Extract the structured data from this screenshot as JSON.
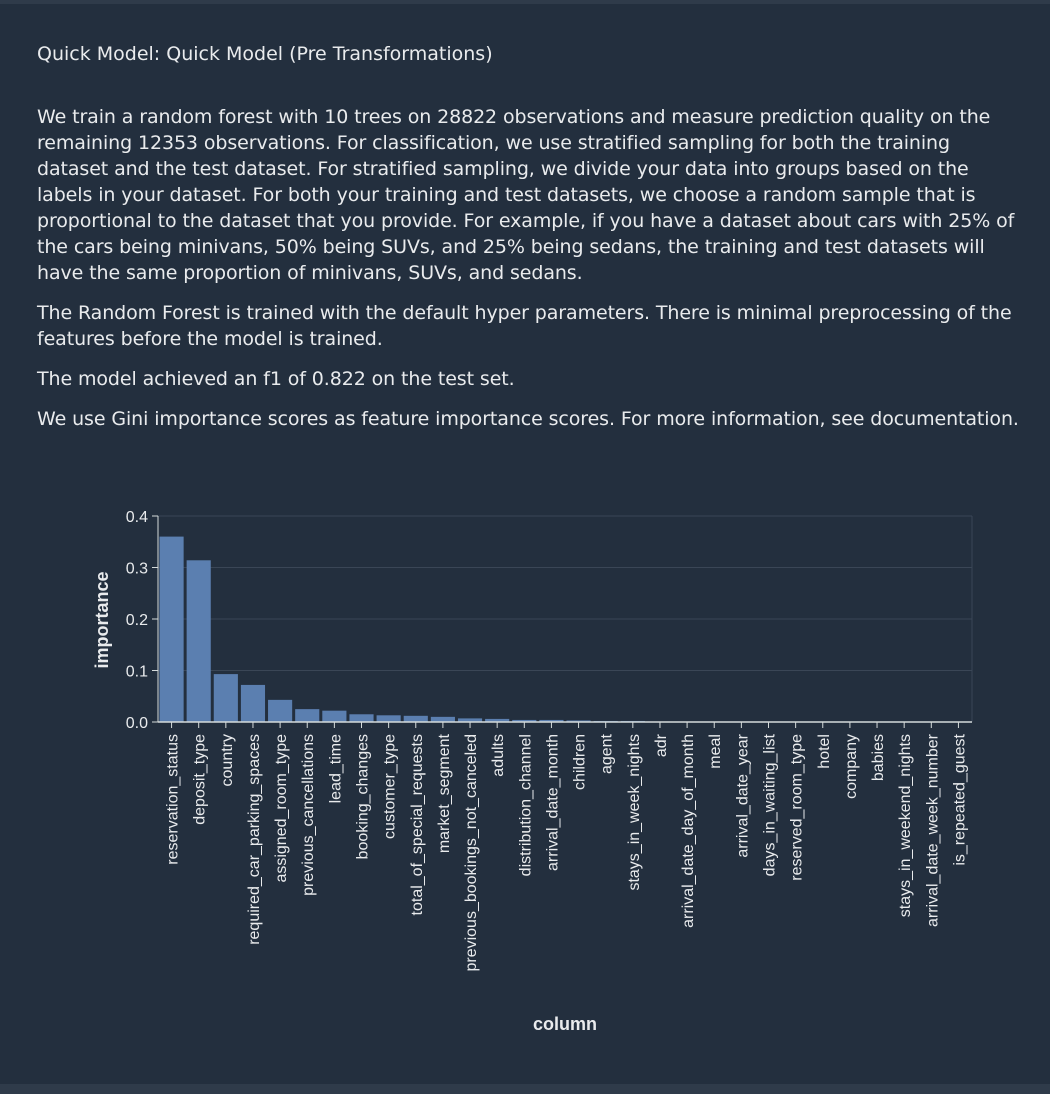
{
  "panel": {
    "title": "Quick Model: Quick Model (Pre Transformations)",
    "paragraphs": [
      "We train a random forest with 10 trees on 28822 observations and measure prediction quality on the remaining 12353 observations. For classification, we use stratified sampling for both the training dataset and the test dataset. For stratified sampling, we divide your data into groups based on the labels in your dataset. For both your training and test datasets, we choose a random sample that is proportional to the dataset that you provide. For example, if you have a dataset about cars with 25% of the cars being minivans, 50% being SUVs, and 25% being sedans, the training and test datasets will have the same proportion of minivans, SUVs, and sedans.",
      "The Random Forest is trained with the default hyper parameters. There is minimal preprocessing of the features before the model is trained.",
      "The model achieved an f1 of 0.822 on the test set.",
      "We use Gini importance scores as feature importance scores. For more information, see documentation."
    ]
  },
  "colors": {
    "background": "#232f3e",
    "bar": "#5b7fb0",
    "axis": "#d5dbdb",
    "grid": "#3a4656"
  },
  "chart_data": {
    "type": "bar",
    "xlabel": "column",
    "ylabel": "importance",
    "ylim": [
      0,
      0.4
    ],
    "yticks": [
      "0.0",
      "0.1",
      "0.2",
      "0.3",
      "0.4"
    ],
    "grid": true,
    "categories": [
      "reservation_status",
      "deposit_type",
      "country",
      "required_car_parking_spaces",
      "assigned_room_type",
      "previous_cancellations",
      "lead_time",
      "booking_changes",
      "customer_type",
      "total_of_special_requests",
      "market_segment",
      "previous_bookings_not_canceled",
      "adults",
      "distribution_channel",
      "arrival_date_month",
      "children",
      "agent",
      "stays_in_week_nights",
      "adr",
      "arrival_date_day_of_month",
      "meal",
      "arrival_date_year",
      "days_in_waiting_list",
      "reserved_room_type",
      "hotel",
      "company",
      "babies",
      "stays_in_weekend_nights",
      "arrival_date_week_number",
      "is_repeated_guest"
    ],
    "values": [
      0.36,
      0.314,
      0.093,
      0.072,
      0.043,
      0.025,
      0.022,
      0.015,
      0.013,
      0.012,
      0.01,
      0.007,
      0.006,
      0.004,
      0.004,
      0.003,
      0.002,
      0.002,
      0.001,
      0.001,
      0.001,
      0.001,
      0.001,
      0.0008,
      0.0006,
      0.0005,
      0.0003,
      0.0002,
      0.0002,
      0.0001
    ]
  }
}
